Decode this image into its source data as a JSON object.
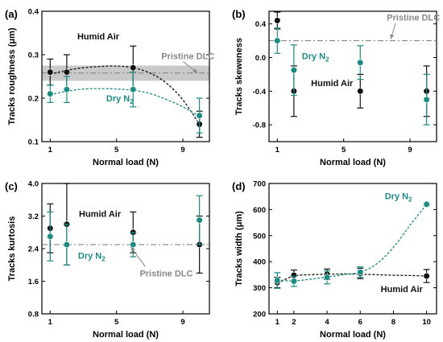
{
  "colors": {
    "humid": "#111111",
    "dry": "#1a8c84",
    "ref": "#888888",
    "band": "#c0c0c0"
  },
  "chart_data": [
    {
      "type": "scatter",
      "title": "(a)",
      "xlabel": "Normal load (N)",
      "ylabel": "Tracks roughness (μm)",
      "xlim": [
        0.5,
        10.6
      ],
      "ylim": [
        0.1,
        0.4
      ],
      "xticks": [
        1,
        5,
        9
      ],
      "yticks": [
        0.1,
        0.2,
        0.3,
        0.4
      ],
      "ytick_labels": [
        "0.1",
        "0.2",
        "0.3",
        "0.4"
      ],
      "series": [
        {
          "name": "Humid Air",
          "x": [
            1,
            2,
            6,
            10
          ],
          "y": [
            0.26,
            0.26,
            0.27,
            0.14
          ],
          "err": [
            0.03,
            0.04,
            0.05,
            0.03
          ]
        },
        {
          "name": "Dry N₂",
          "x": [
            1,
            2,
            6,
            10
          ],
          "y": [
            0.21,
            0.22,
            0.22,
            0.16
          ],
          "err": [
            0.02,
            0.03,
            0.04,
            0.04
          ]
        }
      ],
      "curves": [
        {
          "series": "Humid Air",
          "x": [
            1,
            2,
            3,
            4,
            5,
            6,
            7,
            8,
            9,
            10
          ],
          "y": [
            0.255,
            0.264,
            0.27,
            0.273,
            0.274,
            0.27,
            0.258,
            0.235,
            0.196,
            0.14
          ]
        },
        {
          "series": "Dry N₂",
          "x": [
            1,
            2,
            3,
            4,
            5,
            6,
            7,
            8,
            9,
            10
          ],
          "y": [
            0.208,
            0.216,
            0.221,
            0.222,
            0.221,
            0.218,
            0.211,
            0.197,
            0.18,
            0.158
          ]
        }
      ],
      "reference": {
        "label": "Pristine DLC",
        "y": 0.258,
        "band": [
          0.24,
          0.275
        ]
      },
      "annotations": [
        {
          "text": "Humid Air",
          "x": 3.9,
          "y": 0.335,
          "series": "Humid Air"
        },
        {
          "text": "Pristine DLC",
          "x": 9.3,
          "y": 0.29,
          "series": "ref"
        },
        {
          "text": "Dry N",
          "sub": "2",
          "x": 5.2,
          "y": 0.193,
          "series": "Dry N₂"
        }
      ]
    },
    {
      "type": "scatter",
      "title": "(b)",
      "xlabel": "Normal load (N)",
      "ylabel": "Tracks skeweness",
      "xlim": [
        0.5,
        10.6
      ],
      "ylim": [
        -1.0,
        0.55
      ],
      "xticks": [
        1,
        5,
        9
      ],
      "yticks": [
        -0.8,
        -0.4,
        0.0,
        0.4
      ],
      "ytick_labels": [
        "-0.8",
        "-0.4",
        "0.0",
        "0.4"
      ],
      "series": [
        {
          "name": "Humid Air",
          "x": [
            1,
            2,
            6,
            10
          ],
          "y": [
            0.44,
            -0.4,
            -0.4,
            -0.4
          ],
          "err": [
            0.1,
            0.3,
            0.2,
            0.3
          ]
        },
        {
          "name": "Dry N₂",
          "x": [
            1,
            2,
            6,
            10
          ],
          "y": [
            0.2,
            -0.15,
            -0.06,
            -0.5
          ],
          "err": [
            0.15,
            0.3,
            0.2,
            0.3
          ]
        }
      ],
      "reference": {
        "label": "Pristine DLC",
        "y": 0.2
      },
      "annotations": [
        {
          "text": "Pristine DLC",
          "x": 9.2,
          "y": 0.44,
          "series": "ref"
        },
        {
          "text": "Dry N",
          "sub": "2",
          "x": 3.3,
          "y": -0.02,
          "series": "Dry N₂"
        },
        {
          "text": "Humid Air",
          "x": 4.3,
          "y": -0.34,
          "series": "Humid Air"
        }
      ]
    },
    {
      "type": "scatter",
      "title": "(c)",
      "xlabel": "Normal load (N)",
      "ylabel": "Tracks kurtosis",
      "xlim": [
        0.5,
        10.6
      ],
      "ylim": [
        0.8,
        4.0
      ],
      "xticks": [
        1,
        5,
        9
      ],
      "yticks": [
        0.8,
        1.6,
        2.4,
        3.2,
        4.0
      ],
      "ytick_labels": [
        "0.8",
        "1.6",
        "2.4",
        "3.2",
        "4.0"
      ],
      "series": [
        {
          "name": "Humid Air",
          "x": [
            1,
            2,
            6,
            10
          ],
          "y": [
            2.9,
            3.0,
            2.8,
            2.5
          ],
          "err": [
            0.6,
            1.0,
            0.5,
            0.7
          ]
        },
        {
          "name": "Dry N₂",
          "x": [
            1,
            2,
            6,
            10
          ],
          "y": [
            2.7,
            2.5,
            2.5,
            3.1
          ],
          "err": [
            0.6,
            0.5,
            0.3,
            0.6
          ]
        }
      ],
      "reference": {
        "label": "Pristine DLC",
        "y": 2.5
      },
      "annotations": [
        {
          "text": "Humid Air",
          "x": 4.0,
          "y": 3.18,
          "series": "Humid Air"
        },
        {
          "text": "Dry N",
          "sub": "2",
          "x": 3.5,
          "y": 2.15,
          "series": "Dry N₂"
        },
        {
          "text": "Pristine DLC",
          "x": 8.0,
          "y": 1.72,
          "series": "ref"
        }
      ]
    },
    {
      "type": "scatter",
      "title": "(d)",
      "xlabel": "Normal load (N)",
      "ylabel": "Tracks width (μm)",
      "xlim": [
        0.5,
        10.6
      ],
      "ylim": [
        200,
        700
      ],
      "xticks": [
        1,
        2,
        4,
        6,
        8,
        10
      ],
      "yticks": [
        200,
        300,
        400,
        500,
        600,
        700
      ],
      "ytick_labels": [
        "200",
        "300",
        "400",
        "500",
        "600",
        "700"
      ],
      "series": [
        {
          "name": "Humid Air",
          "x": [
            1,
            2,
            4,
            6,
            10
          ],
          "y": [
            320,
            348,
            352,
            355,
            345
          ],
          "err": [
            20,
            20,
            20,
            20,
            25
          ]
        },
        {
          "name": "Dry N₂",
          "x": [
            1,
            2,
            4,
            6,
            10
          ],
          "y": [
            328,
            325,
            340,
            360,
            620
          ],
          "err": [
            30,
            20,
            25,
            20,
            5
          ]
        }
      ],
      "curves": [
        {
          "series": "Humid Air",
          "x": [
            1,
            2,
            3,
            4,
            5,
            6,
            7,
            8,
            9,
            10
          ],
          "y": [
            318,
            345,
            350,
            352,
            353,
            352,
            350,
            348,
            347,
            345
          ]
        },
        {
          "series": "Dry N₂",
          "x": [
            1,
            2,
            3,
            4,
            5,
            6,
            7,
            8,
            9,
            10
          ],
          "y": [
            330,
            326,
            333,
            341,
            350,
            360,
            392,
            455,
            540,
            620
          ]
        }
      ],
      "annotations": [
        {
          "text": "Dry N",
          "sub": "2",
          "x": 8.3,
          "y": 640,
          "series": "Dry N₂"
        },
        {
          "text": "Humid Air",
          "x": 8.5,
          "y": 283,
          "series": "Humid Air"
        }
      ]
    }
  ]
}
